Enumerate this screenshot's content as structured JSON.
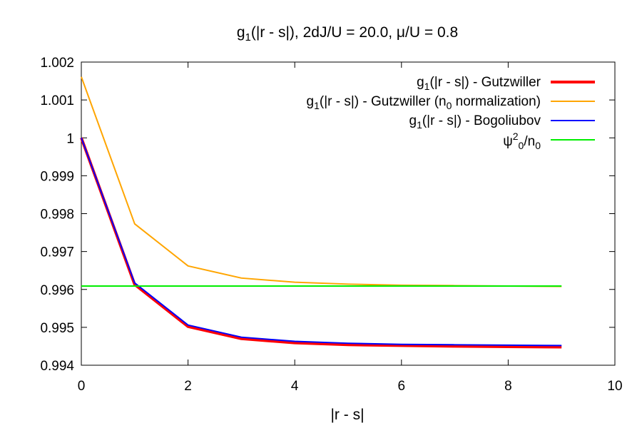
{
  "chart_data": {
    "type": "line",
    "title": {
      "base": "g",
      "sub": "1",
      "rest": "(|r - s|), 2dJ/U = 20.0, μ/U = 0.8"
    },
    "xlabel": "|r - s|",
    "ylabel": "",
    "xlim": [
      0,
      10
    ],
    "ylim": [
      0.994,
      1.002
    ],
    "xticks": [
      "0",
      "2",
      "4",
      "6",
      "8",
      "10"
    ],
    "yticks": [
      "0.994",
      "0.995",
      "0.996",
      "0.997",
      "0.998",
      "0.999",
      "1",
      "1.001",
      "1.002"
    ],
    "grid": false,
    "legend_position": "top-right",
    "series": [
      {
        "legend": {
          "base": "g",
          "sub": "1",
          "rest": "(|r - s|) - Gutzwiller"
        },
        "color": "#ff0000",
        "x": [
          0,
          1,
          2,
          3,
          4,
          5,
          6,
          7,
          8,
          9
        ],
        "y": [
          1.0,
          0.99613,
          0.99502,
          0.9947,
          0.99459,
          0.99454,
          0.99452,
          0.9945,
          0.99449,
          0.99448
        ]
      },
      {
        "legend": {
          "base": "g",
          "sub": "1",
          "rest": "(|r - s|) - Gutzwiller (n",
          "sub2": "0",
          "rest2": " normalization)"
        },
        "color": "#ffa500",
        "x": [
          0,
          1,
          2,
          3,
          4,
          5,
          6,
          7,
          8,
          9
        ],
        "y": [
          1.00161,
          0.99773,
          0.99662,
          0.9963,
          0.99619,
          0.99614,
          0.99611,
          0.9961,
          0.99609,
          0.99608
        ]
      },
      {
        "legend": {
          "base": "g",
          "sub": "1",
          "rest": "(|r - s|) - Bogoliubov"
        },
        "color": "#0000ff",
        "x": [
          0,
          1,
          2,
          3,
          4,
          5,
          6,
          7,
          8,
          9
        ],
        "y": [
          1.0,
          0.99617,
          0.99506,
          0.99474,
          0.99463,
          0.99458,
          0.99455,
          0.99454,
          0.99453,
          0.99452
        ]
      },
      {
        "legend": {
          "psi": "ψ",
          "sup": "2",
          "sub": "0",
          "rest": "/n",
          "sub2": "0"
        },
        "color": "#00ee00",
        "x": [
          0,
          9
        ],
        "y": [
          0.99609,
          0.99609
        ]
      }
    ]
  }
}
